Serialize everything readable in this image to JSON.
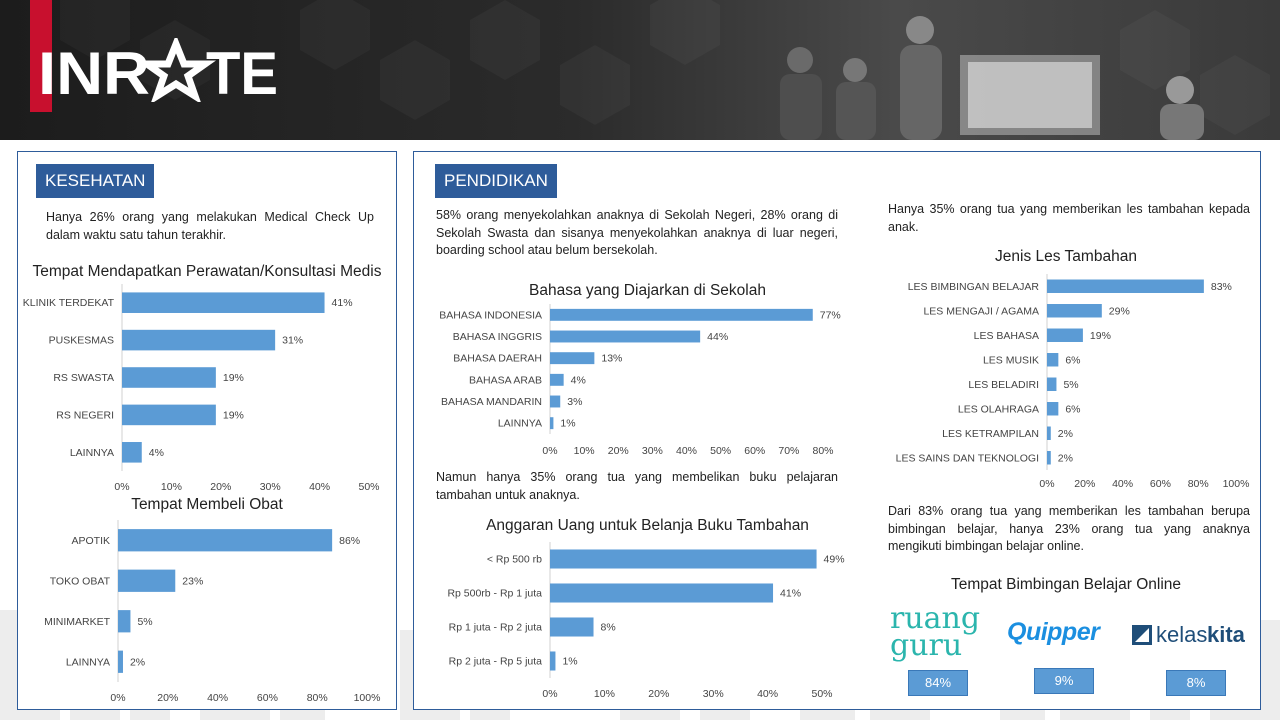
{
  "colors": {
    "bar": "#5b9bd5",
    "panel": "#2e5c9a",
    "brand": "#c8102e"
  },
  "header": {
    "logo_text": "INRATE"
  },
  "kesehatan": {
    "heading": "KESEHATAN",
    "text": "Hanya 26% orang yang melakukan Medical Check Up dalam waktu satu tahun terakhir."
  },
  "pendidikan": {
    "heading": "PENDIDIKAN",
    "text1": "58% orang menyekolahkan anaknya di Sekolah Negeri, 28% orang di Sekolah Swasta dan sisanya menyekolahkan anaknya di luar negeri, boarding school atau belum bersekolah.",
    "text2": "Namun hanya 35% orang tua yang membelikan buku pelajaran tambahan untuk anaknya.",
    "text3": "Hanya 35% orang tua yang memberikan les tambahan kepada anak.",
    "text4": "Dari 83% orang tua yang memberikan les tambahan berupa bimbingan belajar, hanya 23% orang tua yang anaknya mengikuti bimbingan belajar online.",
    "online_title": "Tempat Bimbingan Belajar Online",
    "online": [
      {
        "name": "ruangguru",
        "logo_line1": "ruang",
        "logo_line2": "guru",
        "value": "84%"
      },
      {
        "name": "Quipper",
        "logo_line1": "Quipper",
        "value": "9%"
      },
      {
        "name": "kelaskita",
        "logo_line1": "kelas",
        "logo_line2": "kita",
        "value": "8%"
      }
    ]
  },
  "chart_data": [
    {
      "id": "perawatan",
      "type": "bar",
      "orientation": "horizontal",
      "title": "Tempat Mendapatkan Perawatan/Konsultasi Medis",
      "categories": [
        "KLINIK TERDEKAT",
        "PUSKESMAS",
        "RS SWASTA",
        "RS NEGERI",
        "LAINNYA"
      ],
      "values": [
        41,
        31,
        19,
        19,
        4
      ],
      "value_labels": [
        "41%",
        "31%",
        "19%",
        "19%",
        "4%"
      ],
      "xlim": [
        0,
        50
      ],
      "ticks": [
        0,
        10,
        20,
        30,
        40,
        50
      ],
      "tick_labels": [
        "0%",
        "10%",
        "20%",
        "30%",
        "40%",
        "50%"
      ]
    },
    {
      "id": "obat",
      "type": "bar",
      "orientation": "horizontal",
      "title": "Tempat Membeli Obat",
      "categories": [
        "APOTIK",
        "TOKO OBAT",
        "MINIMARKET",
        "LAINNYA"
      ],
      "values": [
        86,
        23,
        5,
        2
      ],
      "value_labels": [
        "86%",
        "23%",
        "5%",
        "2%"
      ],
      "xlim": [
        0,
        100
      ],
      "ticks": [
        0,
        20,
        40,
        60,
        80,
        100
      ],
      "tick_labels": [
        "0%",
        "20%",
        "40%",
        "60%",
        "80%",
        "100%"
      ]
    },
    {
      "id": "bahasa",
      "type": "bar",
      "orientation": "horizontal",
      "title": "Bahasa yang Diajarkan di Sekolah",
      "categories": [
        "BAHASA INDONESIA",
        "BAHASA INGGRIS",
        "BAHASA DAERAH",
        "BAHASA ARAB",
        "BAHASA MANDARIN",
        "LAINNYA"
      ],
      "values": [
        77,
        44,
        13,
        4,
        3,
        1
      ],
      "value_labels": [
        "77%",
        "44%",
        "13%",
        "4%",
        "3%",
        "1%"
      ],
      "xlim": [
        0,
        80
      ],
      "ticks": [
        0,
        10,
        20,
        30,
        40,
        50,
        60,
        70,
        80
      ],
      "tick_labels": [
        "0%",
        "10%",
        "20%",
        "30%",
        "40%",
        "50%",
        "60%",
        "70%",
        "80%"
      ]
    },
    {
      "id": "anggaran",
      "type": "bar",
      "orientation": "horizontal",
      "title": "Anggaran Uang untuk Belanja Buku Tambahan",
      "categories": [
        "< Rp 500 rb",
        "Rp 500rb - Rp 1 juta",
        "Rp 1 juta - Rp 2 juta",
        "Rp 2 juta - Rp 5 juta"
      ],
      "values": [
        49,
        41,
        8,
        1
      ],
      "value_labels": [
        "49%",
        "41%",
        "8%",
        "1%"
      ],
      "xlim": [
        0,
        50
      ],
      "ticks": [
        0,
        10,
        20,
        30,
        40,
        50
      ],
      "tick_labels": [
        "0%",
        "10%",
        "20%",
        "30%",
        "40%",
        "50%"
      ]
    },
    {
      "id": "les",
      "type": "bar",
      "orientation": "horizontal",
      "title": "Jenis Les Tambahan",
      "categories": [
        "LES BIMBINGAN BELAJAR",
        "LES MENGAJI / AGAMA",
        "LES BAHASA",
        "LES MUSIK",
        "LES BELADIRI",
        "LES OLAHRAGA",
        "LES KETRAMPILAN",
        "LES SAINS DAN TEKNOLOGI"
      ],
      "values": [
        83,
        29,
        19,
        6,
        5,
        6,
        2,
        2
      ],
      "value_labels": [
        "83%",
        "29%",
        "19%",
        "6%",
        "5%",
        "6%",
        "2%",
        "2%"
      ],
      "xlim": [
        0,
        100
      ],
      "ticks": [
        0,
        20,
        40,
        60,
        80,
        100
      ],
      "tick_labels": [
        "0%",
        "20%",
        "40%",
        "60%",
        "80%",
        "100%"
      ]
    }
  ]
}
